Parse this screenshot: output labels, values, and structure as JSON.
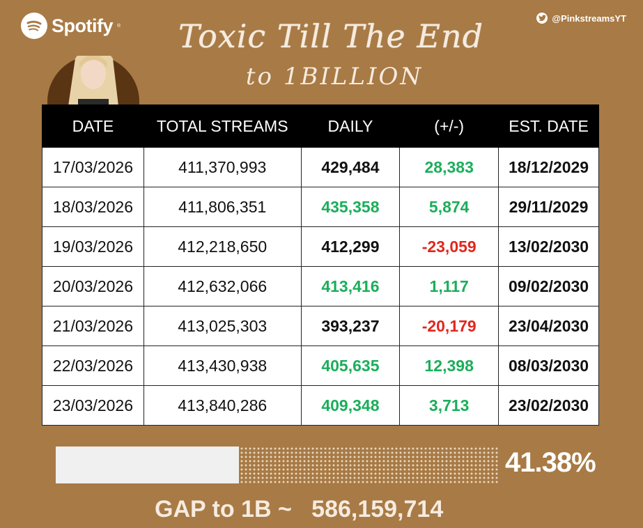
{
  "brand": {
    "name": "Spotify"
  },
  "handle": {
    "text": "@PinkstreamsYT"
  },
  "title": {
    "song": "Toxic Till The End",
    "subtitle": "to 1BILLION"
  },
  "table": {
    "headers": [
      "DATE",
      "TOTAL STREAMS",
      "DAILY",
      "(+/-)",
      "EST. DATE"
    ],
    "rows": [
      {
        "date": "17/03/2026",
        "total": "411,370,993",
        "daily": "429,484",
        "daily_color": "#111111",
        "change": "28,383",
        "change_color": "#1BAE5A",
        "est": "18/12/2029"
      },
      {
        "date": "18/03/2026",
        "total": "411,806,351",
        "daily": "435,358",
        "daily_color": "#1BAE5A",
        "change": "5,874",
        "change_color": "#1BAE5A",
        "est": "29/11/2029"
      },
      {
        "date": "19/03/2026",
        "total": "412,218,650",
        "daily": "412,299",
        "daily_color": "#111111",
        "change": "-23,059",
        "change_color": "#E1261C",
        "est": "13/02/2030"
      },
      {
        "date": "20/03/2026",
        "total": "412,632,066",
        "daily": "413,416",
        "daily_color": "#1BAE5A",
        "change": "1,117",
        "change_color": "#1BAE5A",
        "est": "09/02/2030"
      },
      {
        "date": "21/03/2026",
        "total": "413,025,303",
        "daily": "393,237",
        "daily_color": "#111111",
        "change": "-20,179",
        "change_color": "#E1261C",
        "est": "23/04/2030"
      },
      {
        "date": "22/03/2026",
        "total": "413,430,938",
        "daily": "405,635",
        "daily_color": "#1BAE5A",
        "change": "12,398",
        "change_color": "#1BAE5A",
        "est": "08/03/2030"
      },
      {
        "date": "23/03/2026",
        "total": "413,840,286",
        "daily": "409,348",
        "daily_color": "#1BAE5A",
        "change": "3,713",
        "change_color": "#1BAE5A",
        "est": "23/02/2030"
      }
    ]
  },
  "progress": {
    "value": 0.4138,
    "label": "41.38%"
  },
  "gap": {
    "label": "GAP to 1B ~",
    "value": "586,159,714"
  },
  "colors": {
    "background": "#A87A45",
    "positive": "#1BAE5A",
    "negative": "#E1261C"
  }
}
